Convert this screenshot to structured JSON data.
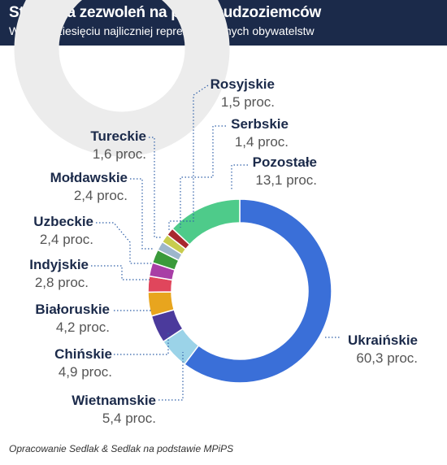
{
  "header": {
    "title": "Struktura zezwoleń na pracę cudzoziemców",
    "subtitle": "Według dziesięciu najliczniej reprezentowanych obywatelstw"
  },
  "source": "Opracowanie Sedlak & Sedlak na podstawie MPiPS",
  "colors": {
    "header_bg": "#1b2a4a",
    "leader_line": "#2f5fa8"
  },
  "chart_data": {
    "type": "pie",
    "donut": true,
    "title": "Struktura zezwoleń na pracę cudzoziemców",
    "subtitle": "Według dziesięciu najliczniej reprezentowanych obywatelstw",
    "unit": "proc.",
    "series": [
      {
        "name": "Ukraińskie",
        "value": 60.3,
        "value_label": "60,3 proc.",
        "color": "#3a6fd8"
      },
      {
        "name": "Wietnamskie",
        "value": 5.4,
        "value_label": "5,4 proc.",
        "color": "#9bd3e8"
      },
      {
        "name": "Chińskie",
        "value": 4.9,
        "value_label": "4,9 proc.",
        "color": "#4b3a9c"
      },
      {
        "name": "Białoruskie",
        "value": 4.2,
        "value_label": "4,2 proc.",
        "color": "#e8a51e"
      },
      {
        "name": "Indyjskie",
        "value": 2.8,
        "value_label": "2,8 proc.",
        "color": "#e0465c"
      },
      {
        "name": "Uzbeckie",
        "value": 2.4,
        "value_label": "2,4 proc.",
        "color": "#a83ea6"
      },
      {
        "name": "Mołdawskie",
        "value": 2.4,
        "value_label": "2,4 proc.",
        "color": "#3a9a3a"
      },
      {
        "name": "Tureckie",
        "value": 1.6,
        "value_label": "1,6 proc.",
        "color": "#9db6cc"
      },
      {
        "name": "Rosyjskie",
        "value": 1.5,
        "value_label": "1,5 proc.",
        "color": "#c8cc4e"
      },
      {
        "name": "Serbskie",
        "value": 1.4,
        "value_label": "1,4 proc.",
        "color": "#a8282e"
      },
      {
        "name": "Pozostałe",
        "value": 13.1,
        "value_label": "13,1 proc.",
        "color": "#4ecb8a"
      }
    ]
  }
}
